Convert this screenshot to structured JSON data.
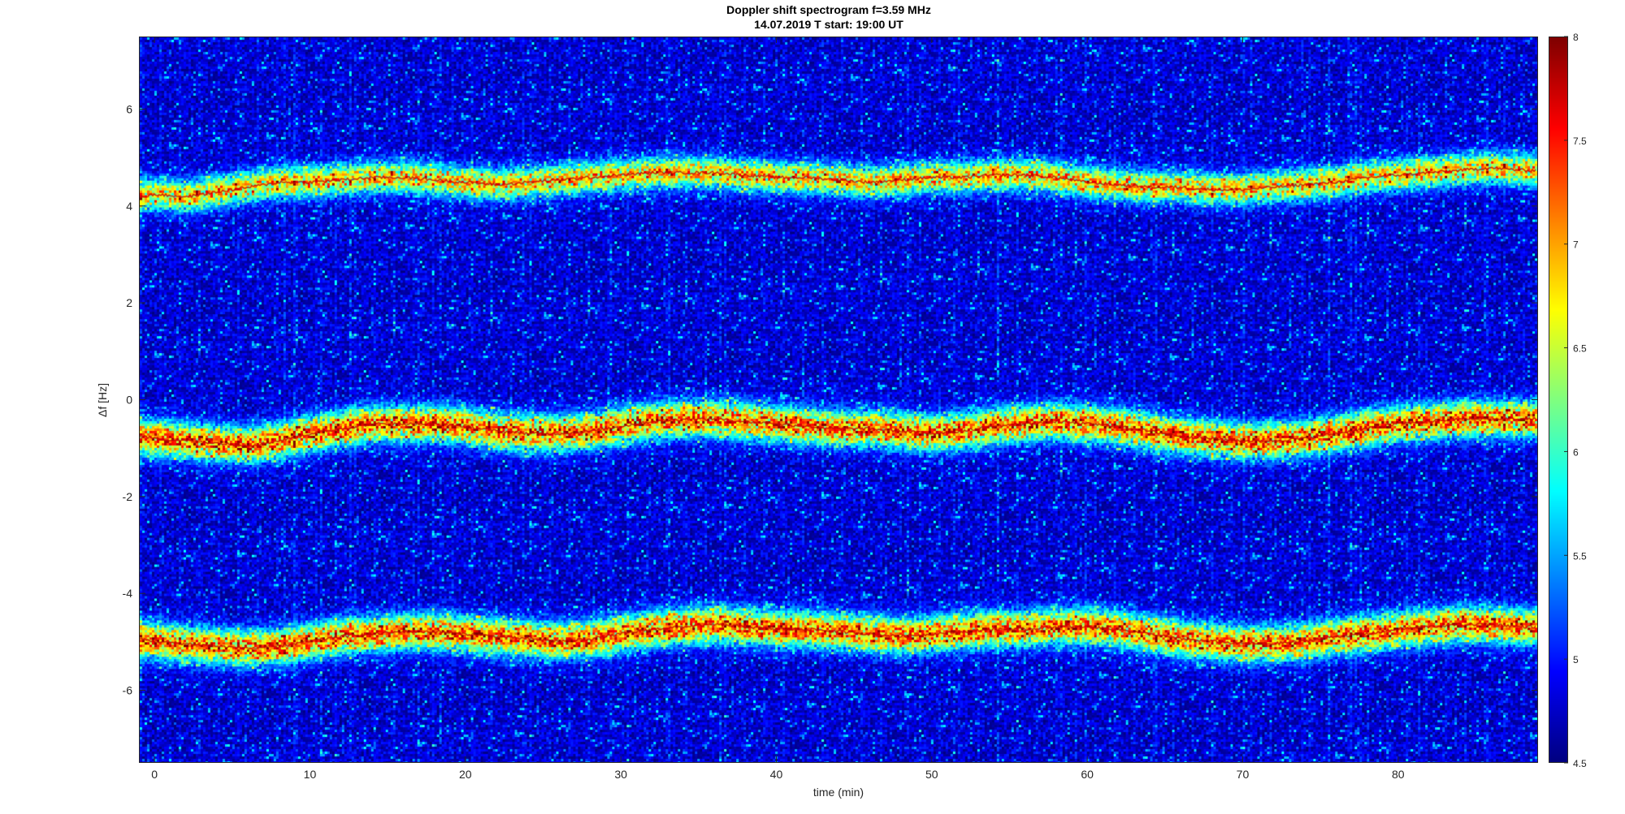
{
  "window": {
    "title_line1": "Doppler shift spectrogram f=3.59 MHz",
    "title_line2": "14.07.2019    T start: 19:00 UT"
  },
  "chart_data": {
    "type": "heatmap",
    "title": "Doppler shift spectrogram f=3.59 MHz",
    "subtitle": "14.07.2019    T start: 19:00 UT",
    "xlabel": "time (min)",
    "ylabel": "Δf [Hz]",
    "xlim": [
      -1,
      89
    ],
    "ylim": [
      -7.5,
      7.5
    ],
    "x_ticks": [
      0,
      10,
      20,
      30,
      40,
      50,
      60,
      70,
      80
    ],
    "y_ticks": [
      -6,
      -4,
      -2,
      0,
      2,
      4,
      6
    ],
    "colorbar": {
      "range": [
        4.5,
        8
      ],
      "ticks": [
        4.5,
        5,
        5.5,
        6,
        6.5,
        7,
        7.5,
        8
      ],
      "colormap": "jet"
    },
    "traces": [
      {
        "x": [
          -1,
          0,
          2,
          4,
          6,
          8,
          10,
          12,
          14,
          16,
          18,
          20,
          22,
          24,
          26,
          28,
          30,
          32,
          34,
          36,
          38,
          40,
          42,
          44,
          46,
          48,
          50,
          52,
          54,
          56,
          58,
          60,
          62,
          64,
          66,
          68,
          70,
          72,
          74,
          76,
          78,
          80,
          82,
          84,
          86,
          88,
          89
        ],
        "y": [
          4.2,
          4.25,
          4.2,
          4.3,
          4.4,
          4.5,
          4.5,
          4.55,
          4.6,
          4.6,
          4.55,
          4.5,
          4.45,
          4.5,
          4.55,
          4.6,
          4.65,
          4.7,
          4.7,
          4.7,
          4.65,
          4.6,
          4.6,
          4.55,
          4.5,
          4.55,
          4.6,
          4.6,
          4.65,
          4.65,
          4.6,
          4.5,
          4.45,
          4.4,
          4.4,
          4.35,
          4.35,
          4.4,
          4.45,
          4.5,
          4.6,
          4.65,
          4.7,
          4.75,
          4.8,
          4.75,
          4.75
        ]
      },
      {
        "x": [
          -1,
          0,
          2,
          4,
          6,
          8,
          10,
          12,
          14,
          16,
          18,
          20,
          22,
          24,
          26,
          28,
          30,
          32,
          34,
          36,
          38,
          40,
          42,
          44,
          46,
          48,
          50,
          52,
          54,
          56,
          58,
          60,
          62,
          64,
          66,
          68,
          70,
          72,
          74,
          76,
          78,
          80,
          82,
          84,
          86,
          88,
          89
        ],
        "y": [
          -0.75,
          -0.8,
          -0.85,
          -0.9,
          -0.95,
          -0.85,
          -0.7,
          -0.6,
          -0.5,
          -0.5,
          -0.5,
          -0.55,
          -0.65,
          -0.7,
          -0.7,
          -0.65,
          -0.55,
          -0.45,
          -0.4,
          -0.4,
          -0.45,
          -0.5,
          -0.55,
          -0.6,
          -0.6,
          -0.65,
          -0.7,
          -0.65,
          -0.55,
          -0.5,
          -0.45,
          -0.5,
          -0.55,
          -0.65,
          -0.75,
          -0.8,
          -0.85,
          -0.85,
          -0.8,
          -0.7,
          -0.6,
          -0.5,
          -0.45,
          -0.4,
          -0.4,
          -0.4,
          -0.4
        ]
      },
      {
        "x": [
          -1,
          0,
          2,
          4,
          6,
          8,
          10,
          12,
          14,
          16,
          18,
          20,
          22,
          24,
          26,
          28,
          30,
          32,
          34,
          36,
          38,
          40,
          42,
          44,
          46,
          48,
          50,
          52,
          54,
          56,
          58,
          60,
          62,
          64,
          66,
          68,
          70,
          72,
          74,
          76,
          78,
          80,
          82,
          84,
          86,
          88,
          89
        ],
        "y": [
          -4.95,
          -5.0,
          -5.05,
          -5.1,
          -5.15,
          -5.1,
          -5.0,
          -4.9,
          -4.85,
          -4.8,
          -4.8,
          -4.85,
          -4.9,
          -4.95,
          -5.0,
          -4.95,
          -4.85,
          -4.75,
          -4.7,
          -4.65,
          -4.7,
          -4.75,
          -4.75,
          -4.8,
          -4.85,
          -4.9,
          -4.85,
          -4.8,
          -4.75,
          -4.75,
          -4.7,
          -4.7,
          -4.75,
          -4.85,
          -4.95,
          -5.0,
          -5.05,
          -5.05,
          -5.0,
          -4.9,
          -4.85,
          -4.75,
          -4.7,
          -4.65,
          -4.65,
          -4.7,
          -4.7
        ]
      }
    ]
  }
}
